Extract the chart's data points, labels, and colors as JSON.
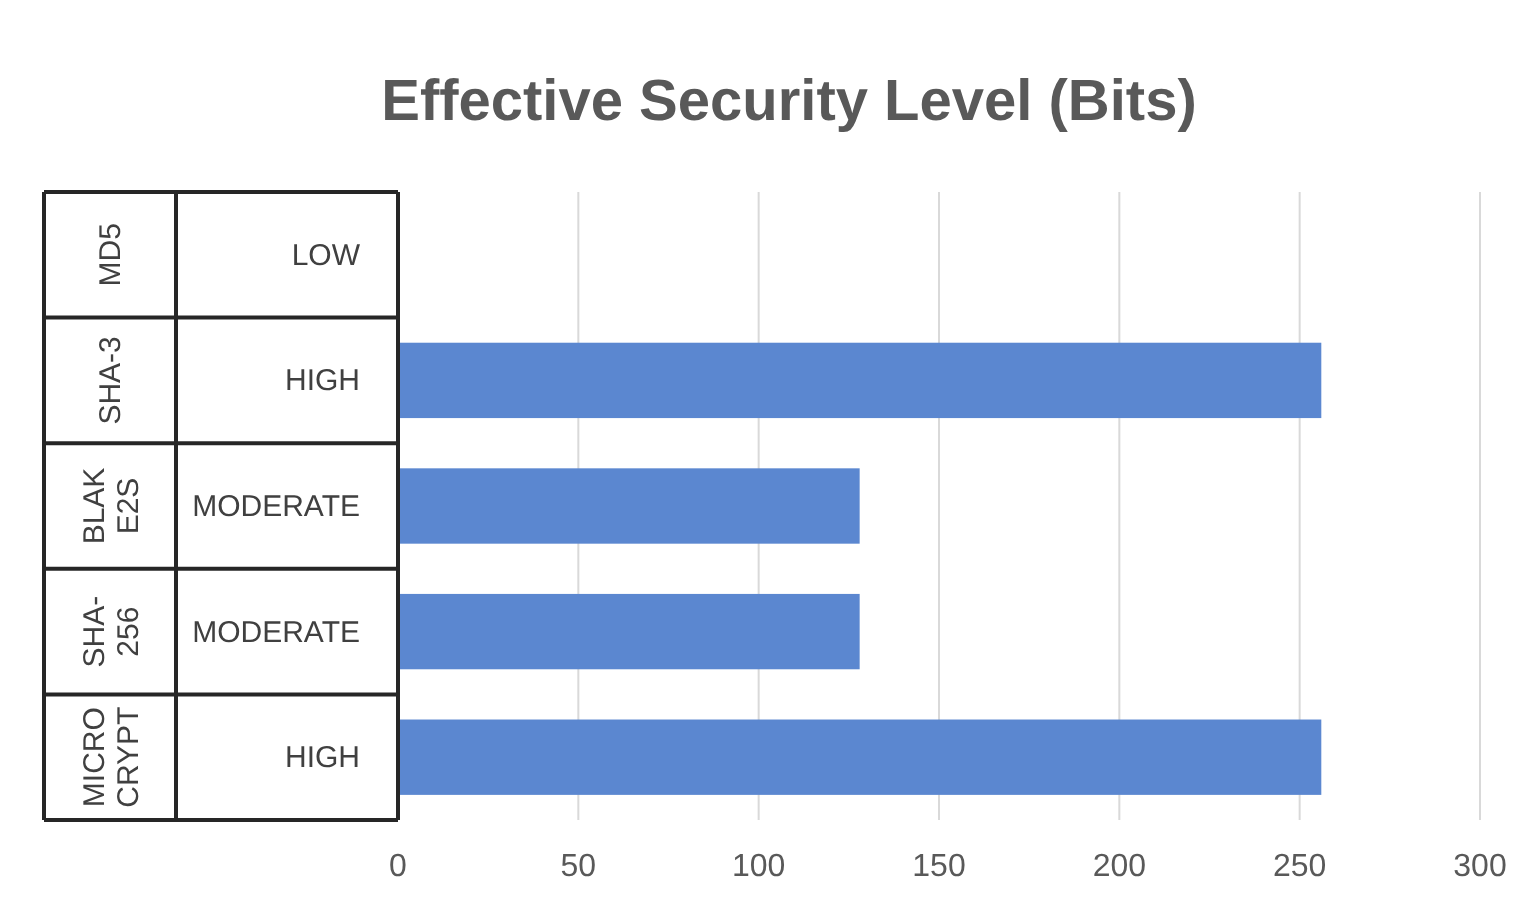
{
  "chart_data": {
    "type": "bar",
    "orientation": "horizontal",
    "title": "Effective Security Level (Bits)",
    "categories": [
      "LOW",
      "HIGH",
      "MODERATE",
      "MODERATE",
      "HIGH"
    ],
    "annotations": [
      "MD5",
      "SHA-3",
      "BLAKE2S",
      "SHA-256",
      "MICROCRYPT"
    ],
    "values": [
      0,
      256,
      128,
      128,
      256
    ],
    "color": "#5b87d0",
    "xlim": [
      0,
      300
    ],
    "xticks": [
      0,
      50,
      100,
      150,
      200,
      250,
      300
    ],
    "grid": "x"
  }
}
